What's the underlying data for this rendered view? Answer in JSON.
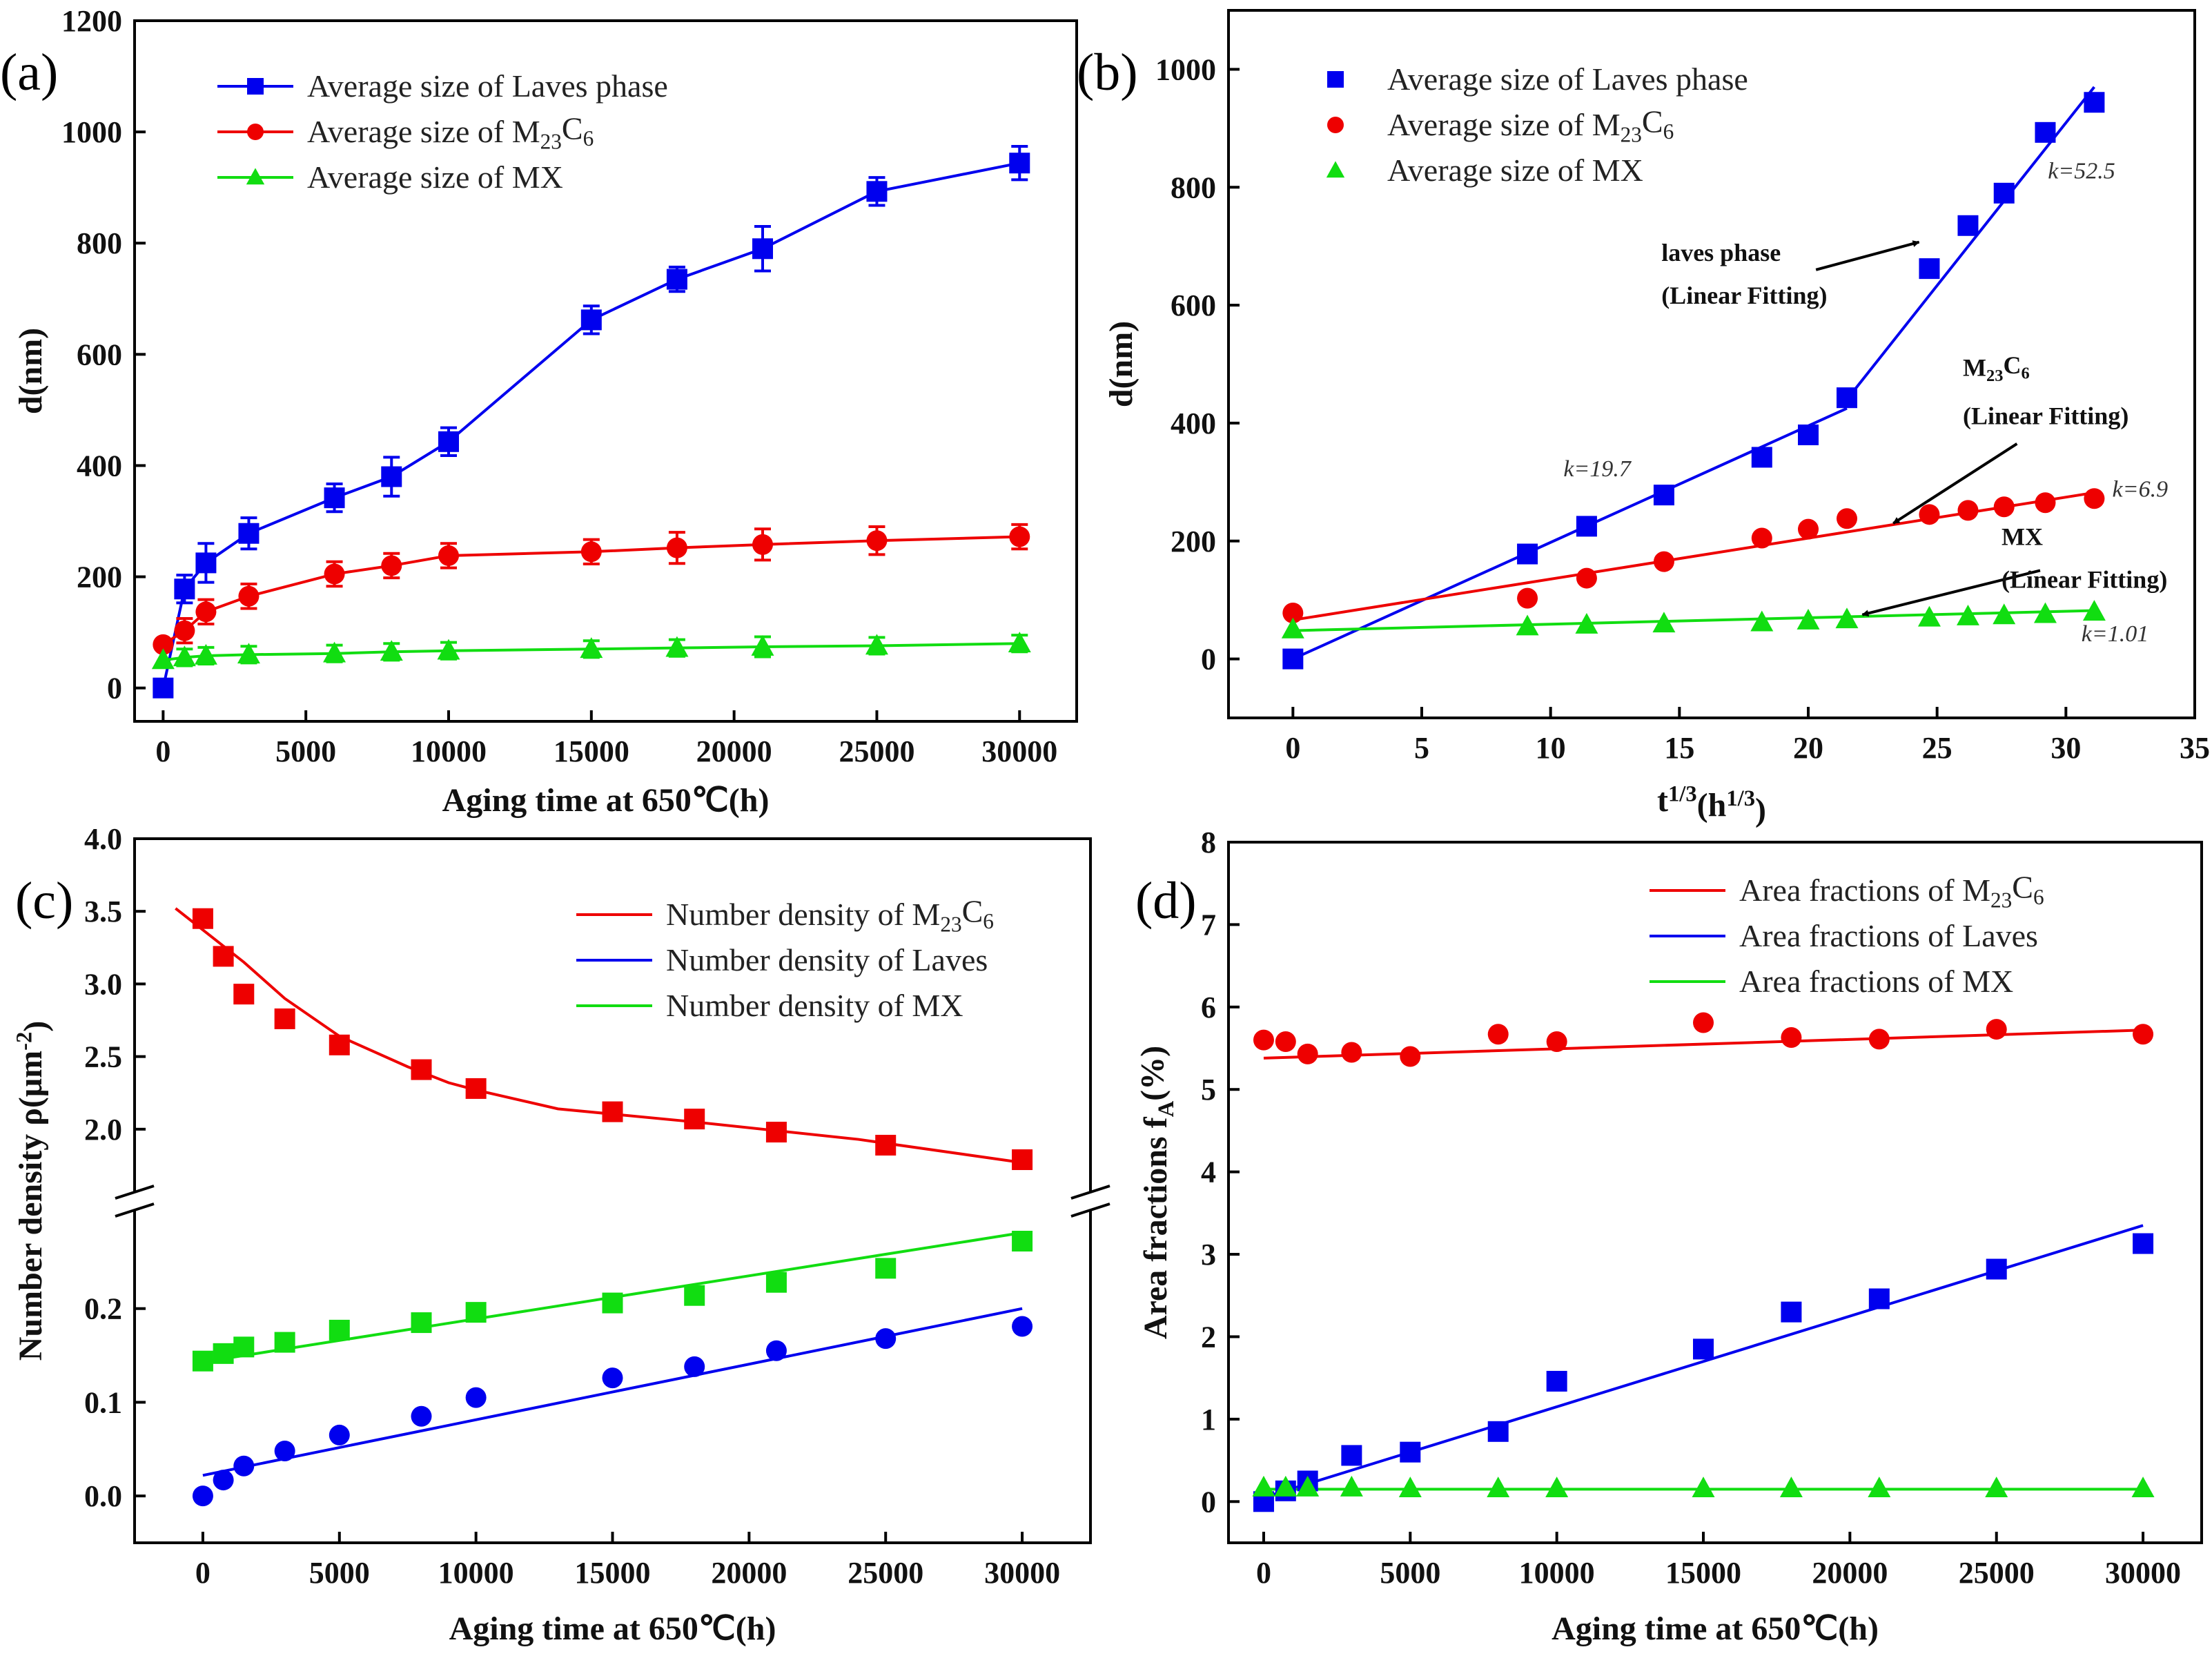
{
  "chart_data": [
    {
      "id": "a",
      "type": "line",
      "panel_label": "(a)",
      "xlabel": "Aging time at 650℃(h)",
      "ylabel": "d(nm)",
      "xlim": [
        -1000,
        32000
      ],
      "ylim": [
        -60,
        1200
      ],
      "xticks": [
        0,
        5000,
        10000,
        15000,
        20000,
        25000,
        30000
      ],
      "yticks": [
        0,
        200,
        400,
        600,
        800,
        1000,
        1200
      ],
      "legend_position": "top-left",
      "series": [
        {
          "name": "Average size of Laves phase",
          "legend": [
            "Average size of Laves phase"
          ],
          "color": "#0000ee",
          "marker": "square",
          "connect": true,
          "x": [
            0,
            750,
            1500,
            3000,
            6000,
            8000,
            10000,
            15000,
            18000,
            21000,
            25000,
            30000
          ],
          "y": [
            0,
            178,
            225,
            278,
            342,
            380,
            443,
            662,
            735,
            790,
            893,
            944
          ],
          "err": [
            0,
            25,
            35,
            28,
            25,
            35,
            25,
            25,
            22,
            40,
            25,
            30
          ]
        },
        {
          "name": "Average size of M23C6",
          "legend": [
            "Average size of M",
            "23",
            "C",
            "6"
          ],
          "color": "#ee0000",
          "marker": "circle",
          "connect": true,
          "x": [
            0,
            750,
            1500,
            3000,
            6000,
            8000,
            10000,
            15000,
            18000,
            21000,
            25000,
            30000
          ],
          "y": [
            78,
            103,
            137,
            165,
            205,
            220,
            238,
            245,
            252,
            258,
            265,
            272
          ],
          "err": [
            0,
            22,
            22,
            22,
            22,
            22,
            22,
            22,
            28,
            28,
            25,
            22
          ]
        },
        {
          "name": "Average size of MX",
          "legend": [
            "Average size of MX"
          ],
          "color": "#11dd11",
          "marker": "triangle",
          "connect": true,
          "x": [
            0,
            750,
            1500,
            3000,
            6000,
            8000,
            10000,
            15000,
            18000,
            21000,
            25000,
            30000
          ],
          "y": [
            50,
            55,
            58,
            60,
            62,
            65,
            67,
            70,
            72,
            74,
            76,
            80
          ],
          "err": [
            0,
            15,
            15,
            15,
            15,
            15,
            15,
            15,
            15,
            18,
            15,
            15
          ]
        }
      ]
    },
    {
      "id": "b",
      "type": "scatter",
      "panel_label": "(b)",
      "xlabel": [
        "t",
        "1/3",
        "(h",
        "1/3",
        ")"
      ],
      "ylabel": "d(nm)",
      "xlim": [
        -2.5,
        35
      ],
      "ylim": [
        -100,
        1100
      ],
      "xticks": [
        0,
        5,
        10,
        15,
        20,
        25,
        30,
        35
      ],
      "yticks": [
        0,
        200,
        400,
        600,
        800,
        1000
      ],
      "legend_position": "top-left",
      "series": [
        {
          "name": "Average size of Laves phase",
          "legend": [
            "Average size of Laves phase"
          ],
          "color": "#0000ee",
          "marker": "square",
          "x": [
            0,
            9.1,
            11.4,
            14.4,
            18.2,
            20.0,
            21.5,
            24.7,
            26.2,
            27.6,
            29.2,
            31.1
          ],
          "y": [
            0,
            178,
            225,
            278,
            342,
            380,
            443,
            662,
            735,
            790,
            893,
            944
          ]
        },
        {
          "name": "Average size of M23C6",
          "legend": [
            "Average size of M",
            "23",
            "C",
            "6"
          ],
          "color": "#ee0000",
          "marker": "circle",
          "x": [
            0,
            9.1,
            11.4,
            14.4,
            18.2,
            20.0,
            21.5,
            24.7,
            26.2,
            27.6,
            29.2,
            31.1
          ],
          "y": [
            78,
            103,
            137,
            165,
            205,
            220,
            238,
            245,
            252,
            258,
            265,
            272
          ]
        },
        {
          "name": "Average size of MX",
          "legend": [
            "Average size of MX"
          ],
          "color": "#11dd11",
          "marker": "triangle",
          "x": [
            0,
            9.1,
            11.4,
            14.4,
            18.2,
            20.0,
            21.5,
            24.7,
            26.2,
            27.6,
            29.2,
            31.1
          ],
          "y": [
            50,
            55,
            58,
            60,
            62,
            65,
            67,
            70,
            72,
            74,
            76,
            80
          ]
        }
      ],
      "fits": [
        {
          "color": "#0000ee",
          "x": [
            0,
            21.5
          ],
          "y": [
            0,
            425
          ]
        },
        {
          "color": "#0000ee",
          "x": [
            21.5,
            31.1
          ],
          "y": [
            440,
            970
          ]
        },
        {
          "color": "#ee0000",
          "x": [
            0,
            31.1
          ],
          "y": [
            66,
            282
          ]
        },
        {
          "color": "#11dd11",
          "x": [
            0,
            31.1
          ],
          "y": [
            48,
            82
          ]
        }
      ],
      "annotations": [
        {
          "lines": [
            "laves phase",
            "(Linear Fitting)"
          ],
          "x": 14.3,
          "y": 675,
          "arrow_from": [
            20.3,
            660
          ],
          "arrow_to": [
            24.3,
            707
          ]
        },
        {
          "lines": [
            "M",
            "23",
            "C",
            "6",
            "(Linear Fitting)"
          ],
          "subscripted": true,
          "x": 26.0,
          "y": 480,
          "arrow_from": [
            28.1,
            365
          ],
          "arrow_to": [
            23.3,
            230
          ]
        },
        {
          "lines": [
            "MX",
            "(Linear Fitting)"
          ],
          "x": 27.5,
          "y": 193,
          "arrow_from": [
            29.0,
            150
          ],
          "arrow_to": [
            22.1,
            75
          ]
        }
      ],
      "slope_labels": [
        {
          "text": "k=52.5",
          "x": 29.3,
          "y": 815
        },
        {
          "text": "k=19.7",
          "x": 10.5,
          "y": 310
        },
        {
          "text": "k=6.9",
          "x": 31.8,
          "y": 275
        },
        {
          "text": "k=1.01",
          "x": 30.6,
          "y": 30
        }
      ]
    },
    {
      "id": "c",
      "type": "scatter",
      "panel_label": "(c)",
      "xlabel": "Aging time at 650℃(h)",
      "ylabel": [
        "Number density ρ(μm",
        "-2",
        ")"
      ],
      "xlim": [
        -2500,
        32500
      ],
      "axis_break": true,
      "upper_ylim": [
        1.6,
        4.0
      ],
      "lower_ylim": [
        -0.05,
        0.3
      ],
      "upper_yticks": [
        2.0,
        2.5,
        3.0,
        3.5,
        4.0
      ],
      "lower_yticks": [
        0.0,
        0.1,
        0.2
      ],
      "xticks": [
        0,
        5000,
        10000,
        15000,
        20000,
        25000,
        30000
      ],
      "legend_position": "top-right",
      "series": [
        {
          "name": "Number density of M23C6",
          "legend": [
            "Number density of M",
            "23",
            "C",
            "6"
          ],
          "color": "#ee0000",
          "marker": "square",
          "axis": "upper",
          "x": [
            0,
            750,
            1500,
            3000,
            5000,
            8000,
            10000,
            15000,
            18000,
            21000,
            25000,
            30000
          ],
          "y": [
            3.45,
            3.19,
            2.93,
            2.76,
            2.58,
            2.41,
            2.28,
            2.12,
            2.07,
            1.98,
            1.89,
            1.79
          ]
        },
        {
          "name": "Number density of Laves",
          "legend": [
            "Number density of Laves"
          ],
          "color": "#0000ee",
          "marker": "circle",
          "axis": "lower",
          "x": [
            0,
            750,
            1500,
            3000,
            5000,
            8000,
            10000,
            15000,
            18000,
            21000,
            25000,
            30000
          ],
          "y": [
            0.0,
            0.017,
            0.032,
            0.048,
            0.065,
            0.085,
            0.105,
            0.126,
            0.138,
            0.155,
            0.168,
            0.181
          ]
        },
        {
          "name": "Number density of MX",
          "legend": [
            "Number density of MX"
          ],
          "color": "#11dd11",
          "marker": "square",
          "axis": "lower",
          "x": [
            0,
            750,
            1500,
            3000,
            5000,
            8000,
            10000,
            15000,
            18000,
            21000,
            25000,
            30000
          ],
          "y": [
            0.144,
            0.152,
            0.159,
            0.164,
            0.177,
            0.185,
            0.196,
            0.206,
            0.214,
            0.228,
            0.243,
            0.272
          ]
        }
      ],
      "fits": [
        {
          "color": "#ee0000",
          "axis": "upper",
          "x": [
            -1000,
            1500,
            3000,
            5000,
            7500,
            9000,
            10000,
            13000,
            18000,
            24000,
            30000
          ],
          "y": [
            3.52,
            3.15,
            2.9,
            2.64,
            2.43,
            2.32,
            2.27,
            2.14,
            2.05,
            1.93,
            1.77
          ]
        },
        {
          "color": "#0000ee",
          "axis": "lower",
          "x": [
            0,
            30000
          ],
          "y": [
            0.022,
            0.2
          ]
        },
        {
          "color": "#11dd11",
          "axis": "lower",
          "x": [
            0,
            30000
          ],
          "y": [
            0.143,
            0.281
          ]
        }
      ]
    },
    {
      "id": "d",
      "type": "scatter",
      "panel_label": "(d)",
      "xlabel": "Aging time at 650℃(h)",
      "ylabel": [
        "Area fractions f",
        "A",
        "(%)"
      ],
      "xlim": [
        -1200,
        32000
      ],
      "ylim": [
        -0.5,
        8
      ],
      "xticks": [
        0,
        5000,
        10000,
        15000,
        20000,
        25000,
        30000
      ],
      "yticks": [
        0,
        1,
        2,
        3,
        4,
        5,
        6,
        7,
        8
      ],
      "legend_position": "top-right",
      "series": [
        {
          "name": "Area fractions of M23C6",
          "legend": [
            "Area fractions of M",
            "23",
            "C",
            "6"
          ],
          "color": "#ee0000",
          "marker": "circle",
          "x": [
            0,
            750,
            1500,
            3000,
            5000,
            8000,
            10000,
            15000,
            18000,
            21000,
            25000,
            30000
          ],
          "y": [
            5.6,
            5.58,
            5.43,
            5.45,
            5.4,
            5.67,
            5.58,
            5.81,
            5.63,
            5.61,
            5.73,
            5.67
          ]
        },
        {
          "name": "Area fractions of Laves",
          "legend": [
            "Area fractions of Laves"
          ],
          "color": "#0000ee",
          "marker": "square",
          "x": [
            0,
            750,
            1500,
            3000,
            5000,
            8000,
            10000,
            15000,
            18000,
            21000,
            25000,
            30000
          ],
          "y": [
            0.0,
            0.13,
            0.25,
            0.56,
            0.6,
            0.85,
            1.46,
            1.85,
            2.3,
            2.46,
            2.82,
            3.13
          ]
        },
        {
          "name": "Area fractions of MX",
          "legend": [
            "Area fractions of MX"
          ],
          "color": "#11dd11",
          "marker": "triangle",
          "x": [
            0,
            750,
            1500,
            3000,
            5000,
            8000,
            10000,
            15000,
            18000,
            21000,
            25000,
            30000
          ],
          "y": [
            0.17,
            0.17,
            0.17,
            0.17,
            0.16,
            0.16,
            0.16,
            0.16,
            0.16,
            0.16,
            0.16,
            0.16
          ]
        }
      ],
      "fits": [
        {
          "color": "#ee0000",
          "x": [
            0,
            30000
          ],
          "y": [
            5.38,
            5.72
          ]
        },
        {
          "color": "#0000ee",
          "x": [
            0,
            30000
          ],
          "y": [
            0.05,
            3.35
          ]
        },
        {
          "color": "#11dd11",
          "x": [
            0,
            30000
          ],
          "y": [
            0.15,
            0.15
          ]
        }
      ]
    }
  ]
}
